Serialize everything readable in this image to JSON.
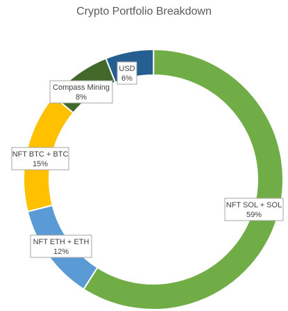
{
  "chart_data": {
    "type": "pie",
    "variant": "donut",
    "title": "Crypto Portfolio Breakdown",
    "categories": [
      "USD",
      "NFT SOL + SOL",
      "NFT ETH + ETH",
      "NFT BTC + BTC",
      "Compass Mining"
    ],
    "values": [
      6,
      59,
      12,
      15,
      8
    ],
    "percent_labels": [
      "6%",
      "59%",
      "12%",
      "15%",
      "8%"
    ],
    "colors": [
      "#255E91",
      "#70AD47",
      "#5B9BD5",
      "#FFC000",
      "#43682B"
    ],
    "legend": "none",
    "data_labels": "category and percent"
  }
}
